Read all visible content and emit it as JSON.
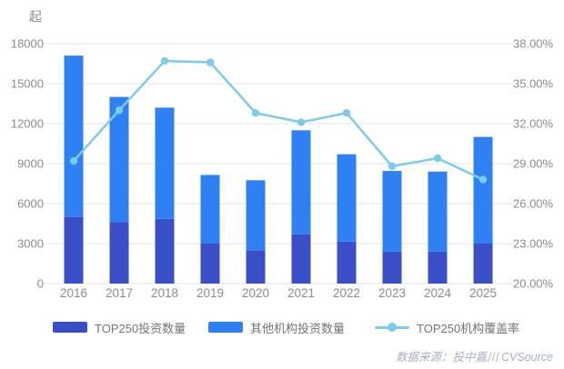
{
  "chart_data": {
    "type": "bar",
    "subtype": "stacked-bars-with-line-overlay",
    "categories": [
      "2016",
      "2017",
      "2018",
      "2019",
      "2020",
      "2021",
      "2022",
      "2023",
      "2024",
      "2025"
    ],
    "series": [
      {
        "name": "TOP250投资数量",
        "type": "bar",
        "stack": "total",
        "color": "#3a4fc6",
        "values": [
          5000,
          4600,
          4850,
          3000,
          2500,
          3700,
          3150,
          2400,
          2400,
          3000
        ]
      },
      {
        "name": "其他机构投资数量",
        "type": "bar",
        "stack": "total",
        "color": "#2f80f2",
        "values": [
          12100,
          9400,
          8350,
          5150,
          5250,
          7800,
          6550,
          6050,
          6000,
          8000
        ]
      },
      {
        "name": "TOP250机构覆盖率",
        "type": "line",
        "axis": "right",
        "color": "#7dcbea",
        "values": [
          29.2,
          33.0,
          36.7,
          36.6,
          32.8,
          32.1,
          32.8,
          28.8,
          29.4,
          27.8
        ]
      }
    ],
    "stack_totals": [
      17100,
      14000,
      13200,
      8150,
      7750,
      11500,
      9700,
      8450,
      8400,
      11000
    ],
    "left_axis": {
      "unit": "起",
      "min": 0,
      "max": 18000,
      "tick_step": 3000,
      "tick_labels": [
        "0",
        "3000",
        "6000",
        "9000",
        "12000",
        "15000",
        "18000"
      ]
    },
    "right_axis": {
      "min": 20,
      "max": 38,
      "tick_step": 3,
      "tick_labels": [
        "20.00%",
        "23.00%",
        "26.00%",
        "29.00%",
        "32.00%",
        "35.00%",
        "38.00%"
      ]
    },
    "grid": true,
    "legend_position": "bottom",
    "colors": {
      "gridline": "#e6e6e6",
      "axis_text": "#8c8c8c",
      "legend_text": "#737373"
    }
  },
  "source_note": "数据来源：投中嘉川 CVSource"
}
